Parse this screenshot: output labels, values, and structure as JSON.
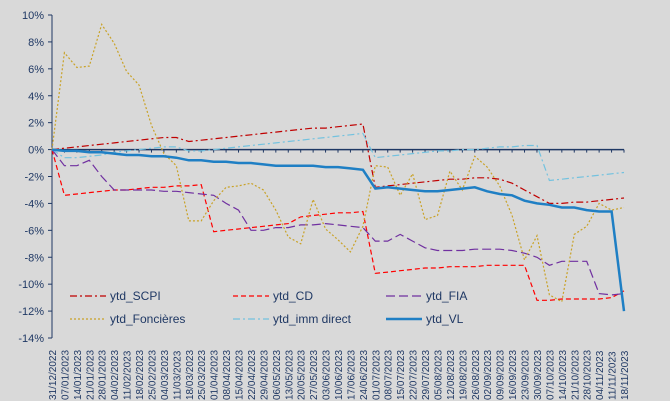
{
  "chart_data": {
    "type": "line",
    "title": "",
    "xlabel": "",
    "ylabel": "",
    "ylim": [
      -0.14,
      0.1
    ],
    "y_tick_labels": [
      "10%",
      "8%",
      "6%",
      "4%",
      "2%",
      "0%",
      "-2%",
      "-4%",
      "-6%",
      "-8%",
      "-10%",
      "-12%",
      "-14%"
    ],
    "x_tick_labels": [
      "31/12/2022",
      "07/01/2023",
      "14/01/2023",
      "21/01/2023",
      "28/01/2023",
      "04/02/2023",
      "11/02/2023",
      "18/02/2023",
      "25/02/2023",
      "04/03/2023",
      "11/03/2023",
      "18/03/2023",
      "25/03/2023",
      "01/04/2023",
      "08/04/2023",
      "15/04/2023",
      "22/04/2023",
      "29/04/2023",
      "06/05/2023",
      "13/05/2023",
      "20/05/2023",
      "27/05/2023",
      "03/06/2023",
      "10/06/2023",
      "17/06/2023",
      "24/06/2023",
      "01/07/2023",
      "08/07/2023",
      "15/07/2023",
      "22/07/2023",
      "29/07/2023",
      "05/08/2023",
      "12/08/2023",
      "19/08/2023",
      "26/08/2023",
      "02/09/2023",
      "09/09/2023",
      "16/09/2023",
      "23/09/2023",
      "30/09/2023",
      "07/10/2023",
      "14/10/2023",
      "21/10/2023",
      "28/10/2023",
      "04/11/2023",
      "11/11/2023",
      "18/11/2023"
    ],
    "grid": false,
    "legend_position": "bottom",
    "series": [
      {
        "name": "ytd_SCPI",
        "color": "#c00000",
        "dash": "dashdot",
        "values": [
          0,
          0.001,
          0.002,
          0.003,
          0.004,
          0.005,
          0.006,
          0.007,
          0.008,
          0.009,
          0.009,
          0.006,
          0.007,
          0.008,
          0.009,
          0.01,
          0.011,
          0.012,
          0.013,
          0.014,
          0.015,
          0.016,
          0.016,
          0.017,
          0.018,
          0.019,
          -0.028,
          -0.027,
          -0.026,
          -0.025,
          -0.024,
          -0.023,
          -0.022,
          -0.022,
          -0.021,
          -0.021,
          -0.022,
          -0.025,
          -0.03,
          -0.035,
          -0.04,
          -0.04,
          -0.039,
          -0.039,
          -0.038,
          -0.037,
          -0.036
        ]
      },
      {
        "name": "ytd_CD",
        "color": "#ff0000",
        "dash": "dash",
        "values": [
          0,
          -0.034,
          -0.033,
          -0.032,
          -0.031,
          -0.03,
          -0.03,
          -0.029,
          -0.028,
          -0.028,
          -0.027,
          -0.027,
          -0.026,
          -0.061,
          -0.06,
          -0.059,
          -0.058,
          -0.057,
          -0.056,
          -0.055,
          -0.05,
          -0.049,
          -0.048,
          -0.047,
          -0.047,
          -0.046,
          -0.092,
          -0.091,
          -0.09,
          -0.089,
          -0.088,
          -0.088,
          -0.087,
          -0.087,
          -0.087,
          -0.086,
          -0.086,
          -0.086,
          -0.086,
          -0.112,
          -0.112,
          -0.111,
          -0.111,
          -0.111,
          -0.111,
          -0.11,
          -0.105
        ]
      },
      {
        "name": "ytd_FIA",
        "color": "#7030a0",
        "dash": "longdash",
        "values": [
          0,
          -0.012,
          -0.012,
          -0.008,
          -0.02,
          -0.03,
          -0.03,
          -0.03,
          -0.03,
          -0.031,
          -0.031,
          -0.032,
          -0.033,
          -0.034,
          -0.04,
          -0.045,
          -0.06,
          -0.06,
          -0.058,
          -0.058,
          -0.056,
          -0.056,
          -0.055,
          -0.056,
          -0.057,
          -0.058,
          -0.068,
          -0.068,
          -0.063,
          -0.068,
          -0.073,
          -0.075,
          -0.075,
          -0.075,
          -0.074,
          -0.074,
          -0.074,
          -0.075,
          -0.077,
          -0.08,
          -0.086,
          -0.083,
          -0.083,
          -0.083,
          -0.107,
          -0.108,
          -0.107
        ]
      },
      {
        "name": "ytd_Foncières",
        "color": "#c9a227",
        "dash": "dot",
        "values": [
          0,
          0.072,
          0.061,
          0.062,
          0.093,
          0.079,
          0.058,
          0.048,
          0.018,
          -0.003,
          -0.012,
          -0.053,
          -0.053,
          -0.038,
          -0.028,
          -0.027,
          -0.025,
          -0.03,
          -0.045,
          -0.065,
          -0.07,
          -0.037,
          -0.059,
          -0.067,
          -0.076,
          -0.057,
          -0.012,
          -0.013,
          -0.034,
          -0.018,
          -0.052,
          -0.049,
          -0.016,
          -0.03,
          -0.005,
          -0.013,
          -0.027,
          -0.049,
          -0.082,
          -0.064,
          -0.108,
          -0.113,
          -0.063,
          -0.057,
          -0.04,
          -0.045,
          -0.043
        ]
      },
      {
        "name": "ytd_imm direct",
        "color": "#73c2df",
        "dash": "dashdot",
        "values": [
          0,
          -0.006,
          -0.006,
          -0.005,
          -0.004,
          -0.002,
          -0.001,
          0,
          0.001,
          0.002,
          0.002,
          -0.001,
          -0.001,
          0,
          0.001,
          0.002,
          0.003,
          0.004,
          0.005,
          0.006,
          0.007,
          0.008,
          0.009,
          0.01,
          0.011,
          0.012,
          -0.006,
          -0.005,
          -0.004,
          -0.003,
          -0.002,
          -0.001,
          -0.001,
          0,
          0,
          0.001,
          0.002,
          0.002,
          0.003,
          0.003,
          -0.023,
          -0.022,
          -0.021,
          -0.02,
          -0.019,
          -0.018,
          -0.017
        ]
      },
      {
        "name": "ytd_VL",
        "color": "#1f7fc4",
        "dash": "solid",
        "values": [
          0,
          -0.001,
          -0.001,
          -0.002,
          -0.002,
          -0.003,
          -0.004,
          -0.004,
          -0.005,
          -0.005,
          -0.006,
          -0.008,
          -0.008,
          -0.009,
          -0.009,
          -0.01,
          -0.01,
          -0.011,
          -0.012,
          -0.012,
          -0.012,
          -0.012,
          -0.013,
          -0.013,
          -0.014,
          -0.015,
          -0.029,
          -0.028,
          -0.029,
          -0.03,
          -0.031,
          -0.031,
          -0.03,
          -0.029,
          -0.028,
          -0.031,
          -0.033,
          -0.034,
          -0.038,
          -0.04,
          -0.041,
          -0.043,
          -0.043,
          -0.045,
          -0.046,
          -0.046,
          -0.12
        ]
      }
    ]
  }
}
